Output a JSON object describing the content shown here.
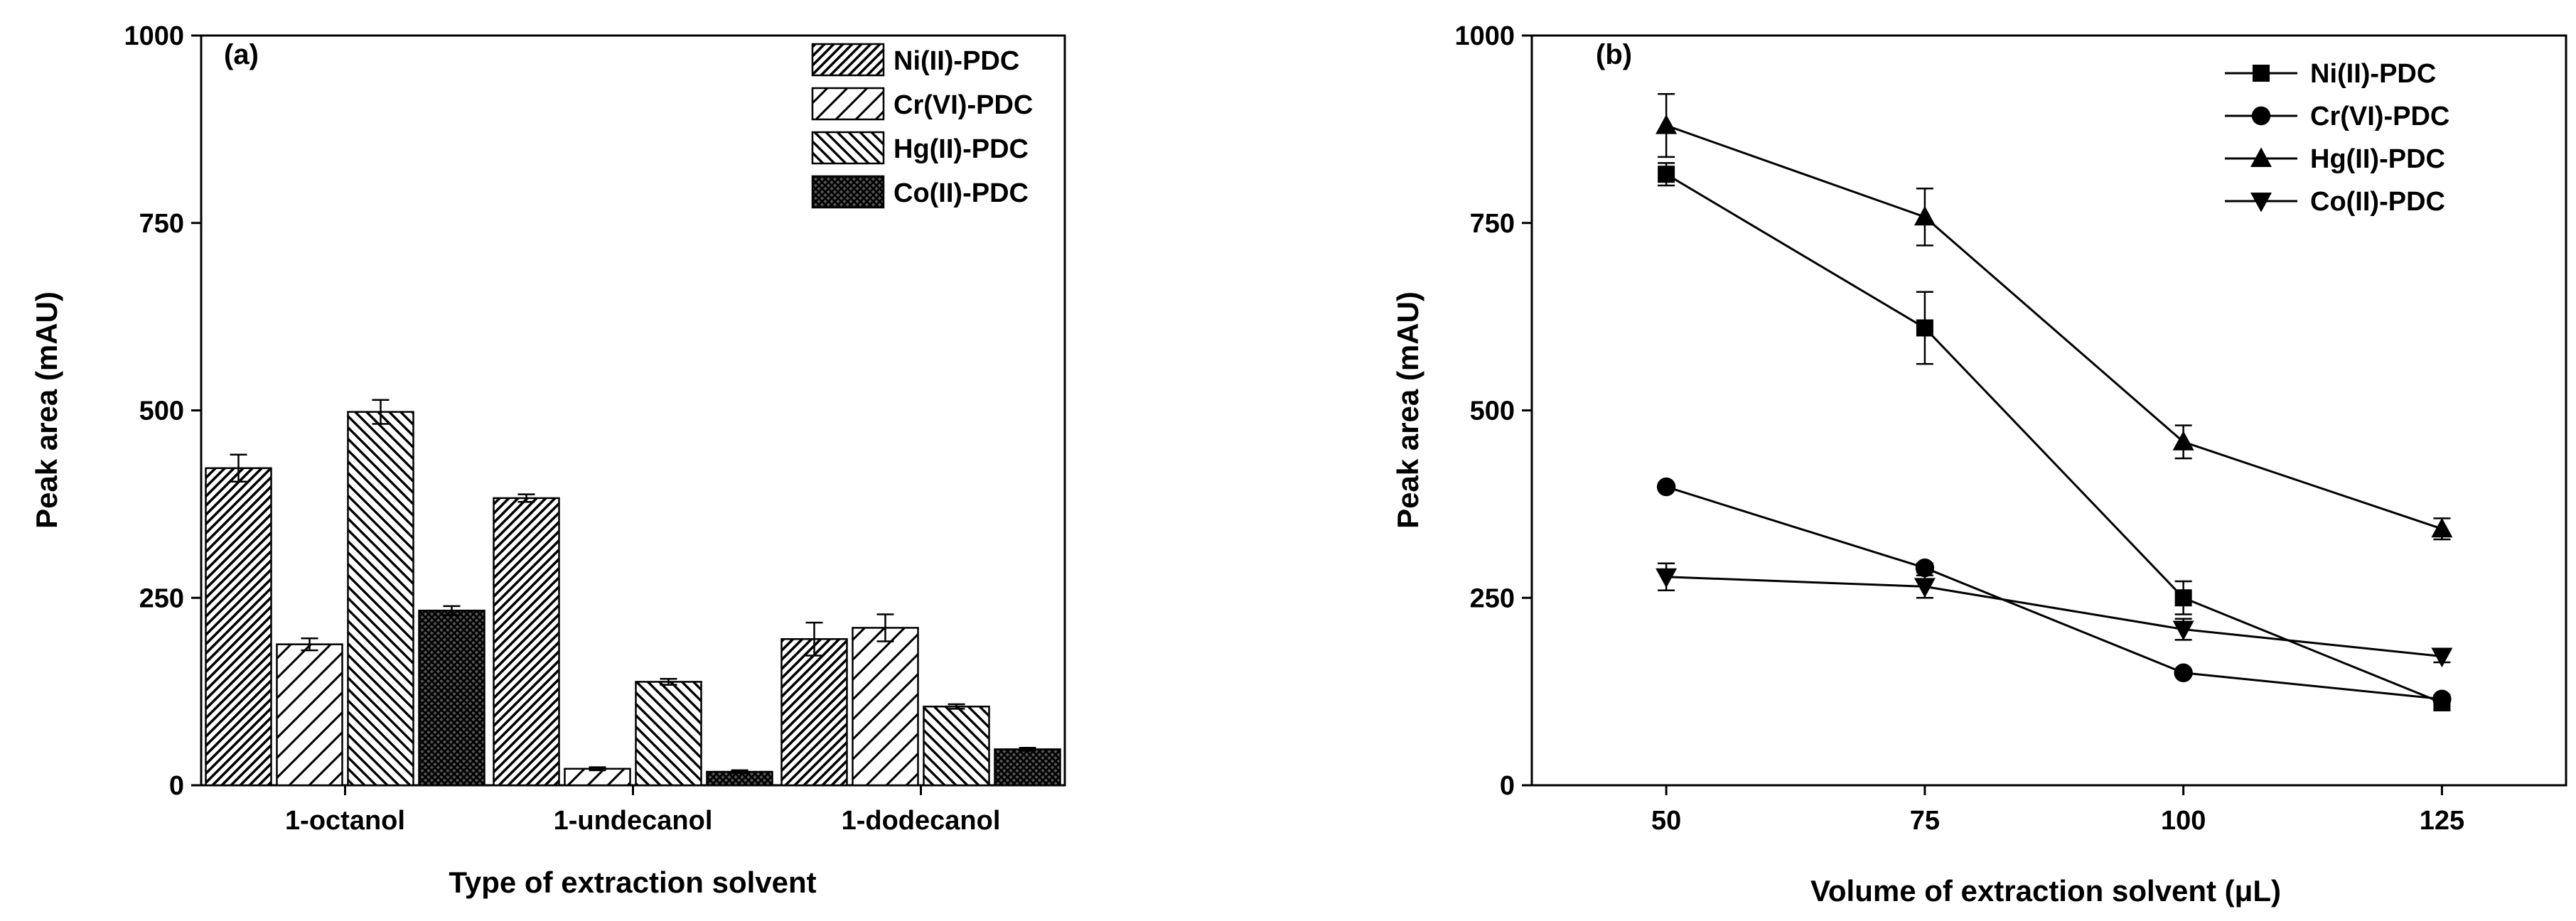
{
  "chart_data": [
    {
      "type": "bar",
      "panel_label": "(a)",
      "title": "",
      "xlabel": "Type of extraction solvent",
      "ylabel": "Peak area (mAU)",
      "ylim": [
        0,
        1000
      ],
      "yticks": [
        "0",
        "250",
        "500",
        "750",
        "1000"
      ],
      "ytick_values": [
        0,
        250,
        500,
        750,
        1000
      ],
      "categories": [
        "1-octanol",
        "1-undecanol",
        "1-dodecanol"
      ],
      "legend_position": "top-right",
      "series": [
        {
          "name": "Ni(II)-PDC",
          "pattern": "hatch-dense",
          "values": [
            423,
            383,
            195
          ],
          "errors": [
            18,
            5,
            22
          ]
        },
        {
          "name": "Cr(VI)-PDC",
          "pattern": "hatch-sparse",
          "values": [
            188,
            22,
            210
          ],
          "errors": [
            8,
            2,
            18
          ]
        },
        {
          "name": "Hg(II)-PDC",
          "pattern": "hatch-back",
          "values": [
            498,
            138,
            105
          ],
          "errors": [
            16,
            4,
            3
          ]
        },
        {
          "name": "Co(II)-PDC",
          "pattern": "crosshatch",
          "values": [
            233,
            18,
            48
          ],
          "errors": [
            6,
            2,
            2
          ]
        }
      ]
    },
    {
      "type": "line",
      "panel_label": "(b)",
      "title": "",
      "xlabel": "Volume of extraction solvent (μL)",
      "ylabel": "Peak area (mAU)",
      "ylim": [
        0,
        1000
      ],
      "xlim": [
        37,
        137
      ],
      "yticks": [
        "0",
        "250",
        "500",
        "750",
        "1000"
      ],
      "ytick_values": [
        0,
        250,
        500,
        750,
        1000
      ],
      "x": [
        50,
        75,
        100,
        125
      ],
      "xticks": [
        "50",
        "75",
        "100",
        "125"
      ],
      "legend_position": "top-right",
      "series": [
        {
          "name": "Ni(II)-PDC",
          "marker": "square",
          "values": [
            815,
            610,
            250,
            110
          ],
          "errors": [
            15,
            48,
            22,
            10
          ]
        },
        {
          "name": "Cr(VI)-PDC",
          "marker": "circle",
          "values": [
            398,
            290,
            150,
            115
          ],
          "errors": [
            4,
            6,
            4,
            4
          ]
        },
        {
          "name": "Hg(II)-PDC",
          "marker": "triangle-up",
          "values": [
            880,
            758,
            458,
            342
          ],
          "errors": [
            42,
            38,
            22,
            14
          ]
        },
        {
          "name": "Co(II)-PDC",
          "marker": "triangle-down",
          "values": [
            278,
            265,
            208,
            172
          ],
          "errors": [
            18,
            15,
            14,
            8
          ]
        }
      ]
    }
  ]
}
